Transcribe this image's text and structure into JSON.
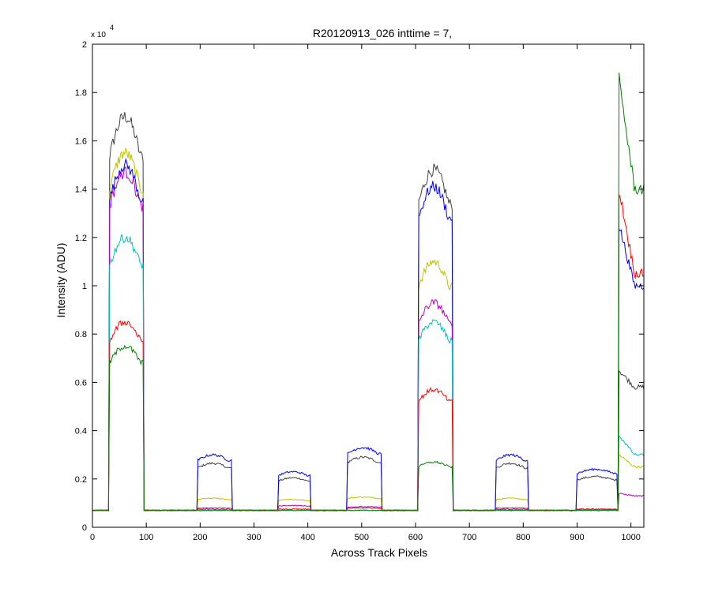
{
  "chart_data": {
    "type": "line",
    "title": "R20120913_026 inttime = 7,",
    "xlabel": "Across Track Pixels",
    "ylabel": "Intensity (ADU)",
    "y_multiplier": "x 10",
    "y_multiplier_exponent": "4",
    "xlim": [
      0,
      1024
    ],
    "ylim": [
      0,
      20000
    ],
    "xticks": [
      0,
      100,
      200,
      300,
      400,
      500,
      600,
      700,
      800,
      900,
      1000
    ],
    "yticks": [
      0,
      2000,
      4000,
      6000,
      8000,
      10000,
      12000,
      14000,
      16000,
      18000,
      20000
    ],
    "ytick_labels": [
      "0",
      "0.2",
      "0.4",
      "0.6",
      "0.8",
      "1",
      "1.2",
      "1.4",
      "1.6",
      "1.8",
      "2"
    ],
    "grid": false,
    "legend": "none",
    "baseline": 700,
    "segments": [
      {
        "start": 32,
        "end": 95
      },
      {
        "start": 195,
        "end": 258
      },
      {
        "start": 345,
        "end": 405
      },
      {
        "start": 473,
        "end": 537
      },
      {
        "start": 605,
        "end": 668
      },
      {
        "start": 750,
        "end": 808
      },
      {
        "start": 900,
        "end": 975
      },
      {
        "start": 978,
        "end": 1024
      }
    ],
    "series": [
      {
        "color": "#404040",
        "levels": [
          17000,
          2650,
          2050,
          2900,
          14800,
          2650,
          2100,
          5800
        ],
        "peak_spike": 6500
      },
      {
        "color": "#c0c000",
        "levels": [
          15500,
          1200,
          1150,
          1250,
          11000,
          1200,
          700,
          2500
        ],
        "peak_spike": 3000
      },
      {
        "color": "#0000ff",
        "levels": [
          15000,
          3000,
          2300,
          3300,
          14100,
          3000,
          2400,
          10000
        ],
        "peak_spike": 12500
      },
      {
        "color": "#c000c0",
        "levels": [
          14700,
          750,
          900,
          850,
          9300,
          750,
          750,
          1300
        ],
        "peak_spike": 1400
      },
      {
        "color": "#00c0c0",
        "levels": [
          12000,
          700,
          700,
          700,
          8500,
          700,
          700,
          3000
        ],
        "peak_spike": 3800
      },
      {
        "color": "#ff0000",
        "levels": [
          8500,
          800,
          750,
          800,
          5700,
          800,
          750,
          10500
        ],
        "peak_spike": 14000
      },
      {
        "color": "#008000",
        "levels": [
          7500,
          700,
          700,
          700,
          2700,
          700,
          700,
          14000
        ],
        "peak_spike": 18500
      }
    ]
  }
}
